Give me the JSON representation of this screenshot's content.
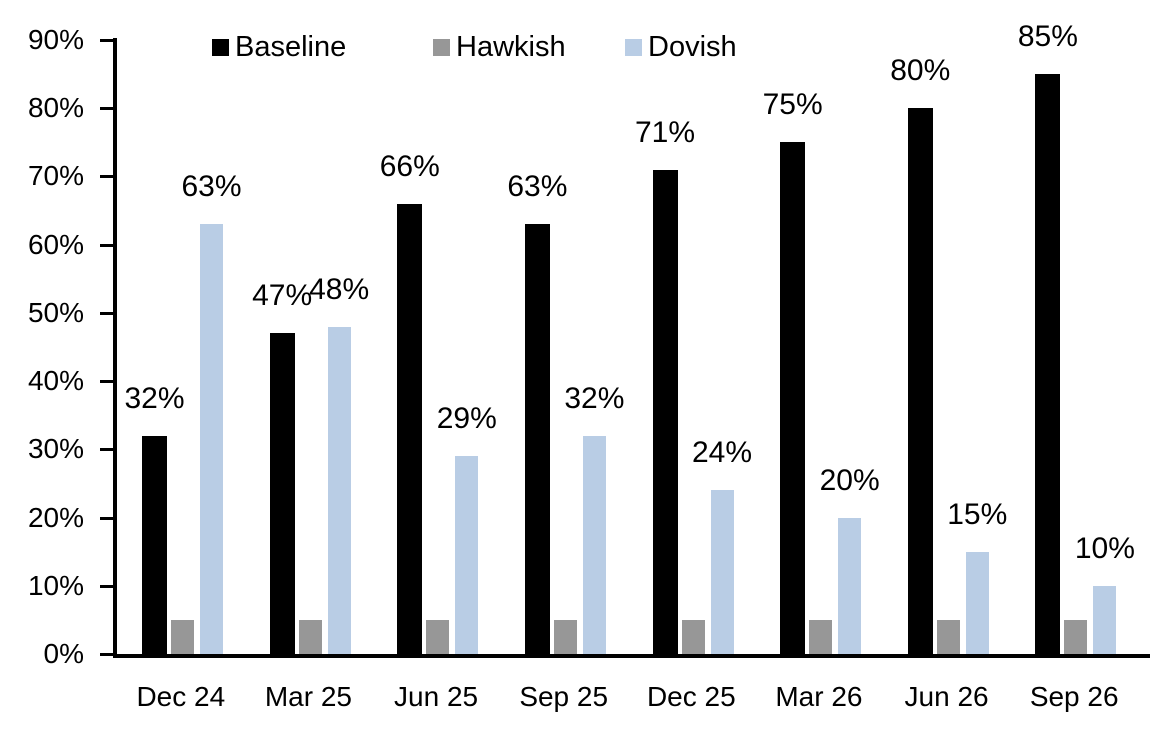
{
  "chart_data": {
    "type": "bar",
    "title": "",
    "categories": [
      "Dec 24",
      "Mar 25",
      "Jun 25",
      "Sep 25",
      "Dec 25",
      "Mar 26",
      "Jun 26",
      "Sep 26"
    ],
    "series": [
      {
        "name": "Baseline",
        "color": "#000000",
        "values": [
          32,
          47,
          66,
          63,
          71,
          75,
          80,
          85
        ],
        "data_labels": [
          "32%",
          "47%",
          "66%",
          "63%",
          "71%",
          "75%",
          "80%",
          "85%"
        ]
      },
      {
        "name": "Hawkish",
        "color": "#979797",
        "values": [
          5,
          5,
          5,
          5,
          5,
          5,
          5,
          5
        ],
        "data_labels": [
          null,
          null,
          null,
          null,
          null,
          null,
          null,
          null
        ]
      },
      {
        "name": "Dovish",
        "color": "#B9CDE5",
        "values": [
          63,
          48,
          29,
          32,
          24,
          20,
          15,
          10
        ],
        "data_labels": [
          "63%",
          "48%",
          "29%",
          "32%",
          "24%",
          "20%",
          "15%",
          "10%"
        ]
      }
    ],
    "ylim": [
      0,
      90
    ],
    "ytick_step": 10,
    "ytick_labels": [
      "0%",
      "10%",
      "20%",
      "30%",
      "40%",
      "50%",
      "60%",
      "70%",
      "80%",
      "90%"
    ],
    "grid": false,
    "legend_position": "top",
    "legend": [
      {
        "label": "Baseline",
        "color": "#000000"
      },
      {
        "label": "Hawkish",
        "color": "#979797"
      },
      {
        "label": "Dovish",
        "color": "#B9CDE5"
      }
    ]
  }
}
